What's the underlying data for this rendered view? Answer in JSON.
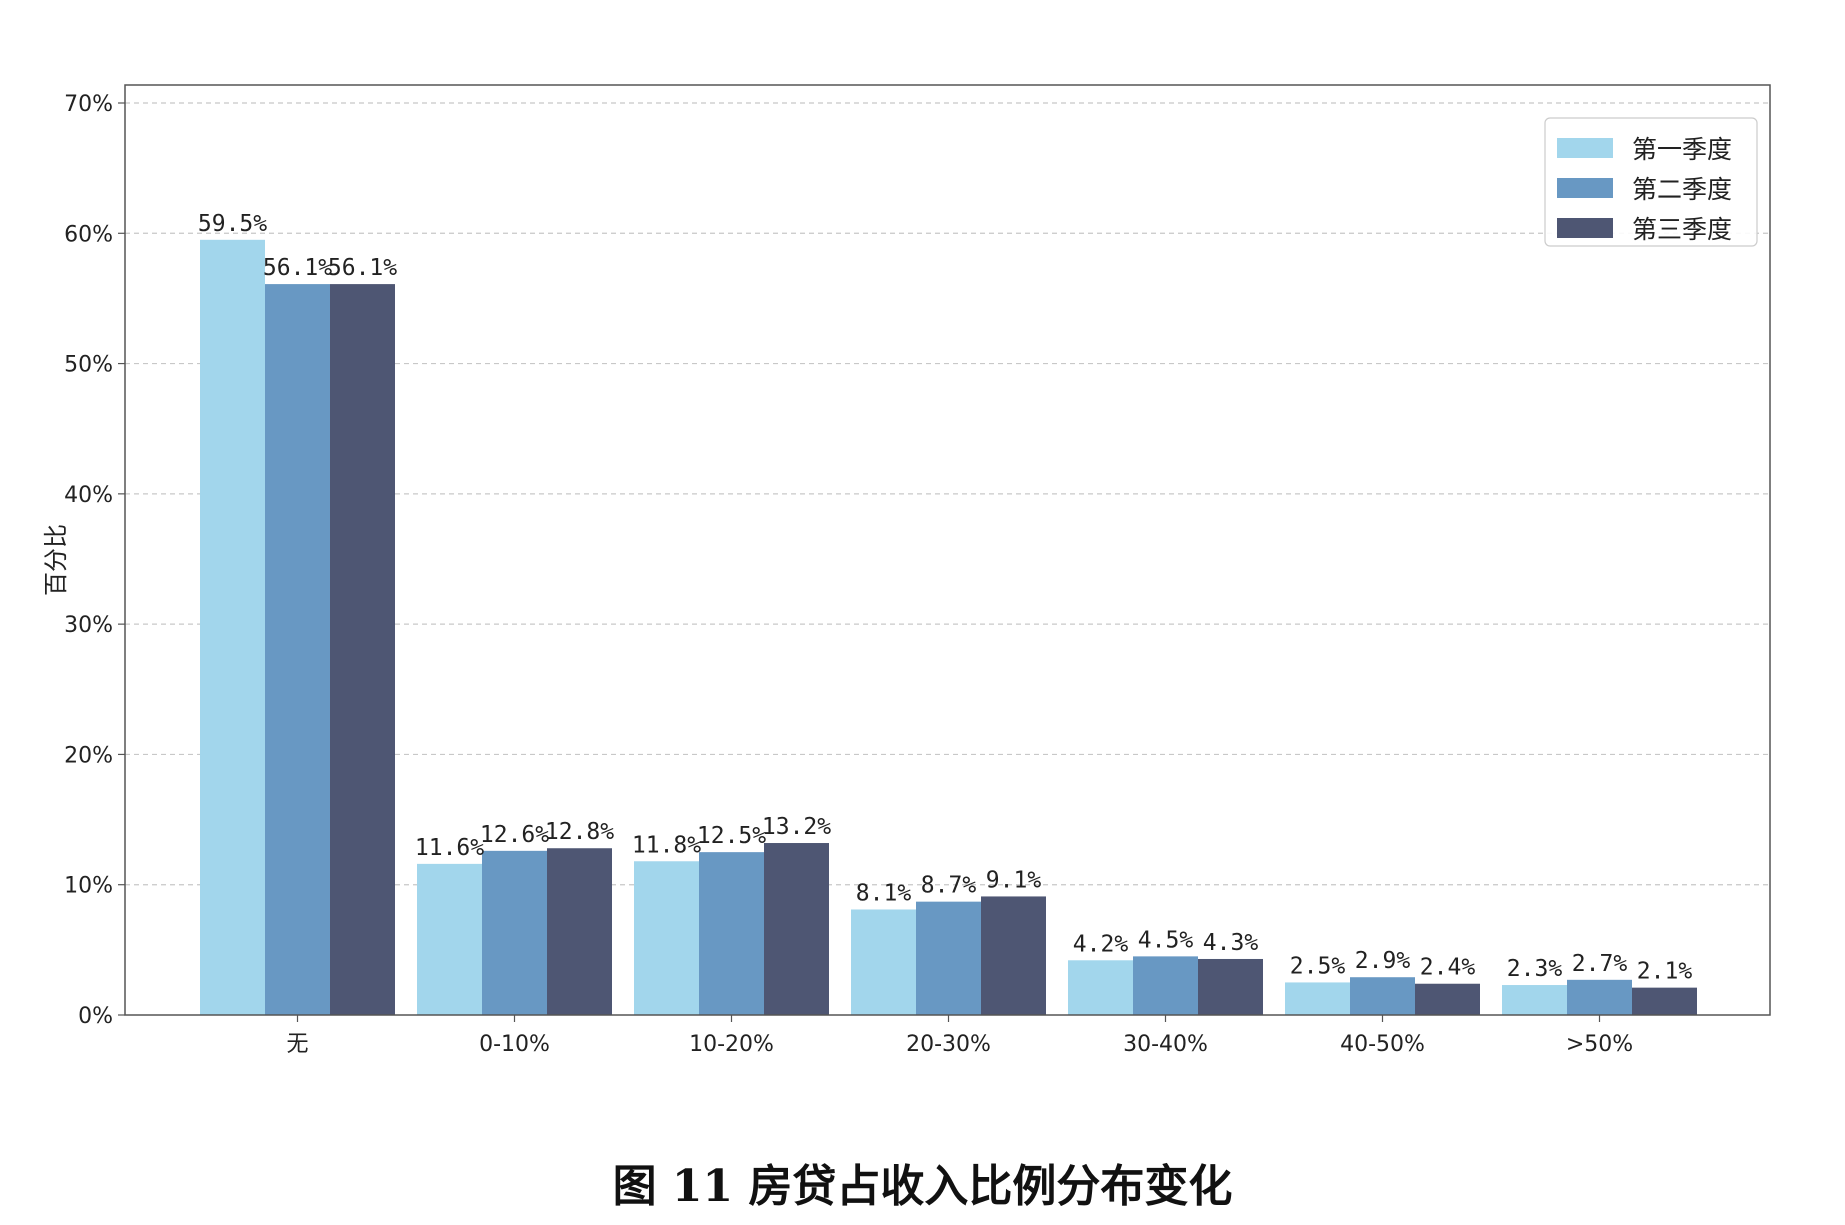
{
  "caption": "图 11 房贷占收入比例分布变化",
  "chart_data": {
    "type": "bar",
    "ylabel": "百分比",
    "ylim": [
      0,
      70
    ],
    "yticks": [
      0,
      10,
      20,
      30,
      40,
      50,
      60,
      70
    ],
    "ytick_format": "%",
    "grid": "horizontal-dashed",
    "legend_position": "top-right",
    "categories": [
      "无",
      "0-10%",
      "10-20%",
      "20-30%",
      "30-40%",
      "40-50%",
      ">50%"
    ],
    "series": [
      {
        "name": "第一季度",
        "color": "#a2d6ec",
        "values": [
          59.5,
          11.6,
          11.8,
          8.1,
          4.2,
          2.5,
          2.3
        ]
      },
      {
        "name": "第二季度",
        "color": "#6898c3",
        "values": [
          56.1,
          12.6,
          12.5,
          8.7,
          4.5,
          2.9,
          2.7
        ]
      },
      {
        "name": "第三季度",
        "color": "#4e5673",
        "values": [
          56.1,
          12.8,
          13.2,
          9.1,
          4.3,
          2.4,
          2.1
        ]
      }
    ]
  }
}
